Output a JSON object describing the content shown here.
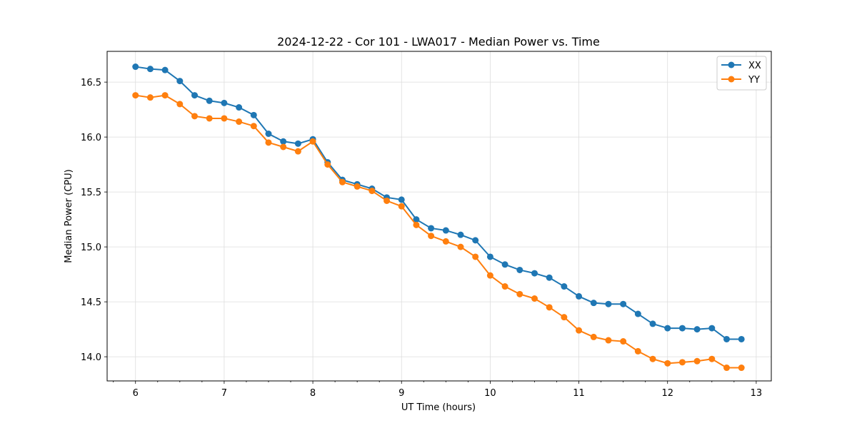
{
  "chart_data": {
    "type": "line",
    "title": "2024-12-22 - Cor 101 - LWA017 - Median Power vs. Time",
    "xlabel": "UT Time (hours)",
    "ylabel": "Median Power (CPU)",
    "xlim": [
      5.68,
      13.17
    ],
    "ylim": [
      13.78,
      16.78
    ],
    "xticks": [
      6,
      7,
      8,
      9,
      10,
      11,
      12,
      13
    ],
    "xtick_labels": [
      "6",
      "7",
      "8",
      "9",
      "10",
      "11",
      "12",
      "13"
    ],
    "yticks": [
      14.0,
      14.5,
      15.0,
      15.5,
      16.0,
      16.5
    ],
    "ytick_labels": [
      "14.0",
      "14.5",
      "15.0",
      "15.5",
      "16.0",
      "16.5"
    ],
    "grid": true,
    "legend_position": "top-right",
    "x": [
      6.0,
      6.1667,
      6.3333,
      6.5,
      6.6667,
      6.8333,
      7.0,
      7.1667,
      7.3333,
      7.5,
      7.6667,
      7.8333,
      8.0,
      8.1667,
      8.3333,
      8.5,
      8.6667,
      8.8333,
      9.0,
      9.1667,
      9.3333,
      9.5,
      9.6667,
      9.8333,
      10.0,
      10.1667,
      10.3333,
      10.5,
      10.6667,
      10.8333,
      11.0,
      11.1667,
      11.3333,
      11.5,
      11.6667,
      11.8333,
      12.0,
      12.1667,
      12.3333,
      12.5,
      12.6667,
      12.8333
    ],
    "series": [
      {
        "name": "XX",
        "color": "#1f77b4",
        "values": [
          16.64,
          16.62,
          16.61,
          16.51,
          16.38,
          16.33,
          16.31,
          16.27,
          16.2,
          16.03,
          15.96,
          15.94,
          15.98,
          15.77,
          15.61,
          15.57,
          15.53,
          15.45,
          15.43,
          15.25,
          15.17,
          15.15,
          15.11,
          15.06,
          14.91,
          14.84,
          14.79,
          14.76,
          14.72,
          14.64,
          14.55,
          14.49,
          14.48,
          14.48,
          14.39,
          14.3,
          14.26,
          14.26,
          14.25,
          14.26,
          14.16,
          14.16
        ]
      },
      {
        "name": "YY",
        "color": "#ff7f0e",
        "values": [
          16.38,
          16.36,
          16.38,
          16.3,
          16.19,
          16.17,
          16.17,
          16.14,
          16.1,
          15.95,
          15.91,
          15.87,
          15.96,
          15.75,
          15.59,
          15.55,
          15.51,
          15.42,
          15.37,
          15.2,
          15.1,
          15.05,
          15.0,
          14.91,
          14.74,
          14.64,
          14.57,
          14.53,
          14.45,
          14.36,
          14.24,
          14.18,
          14.15,
          14.14,
          14.05,
          13.98,
          13.94,
          13.95,
          13.96,
          13.98,
          13.9,
          13.9
        ]
      }
    ]
  }
}
